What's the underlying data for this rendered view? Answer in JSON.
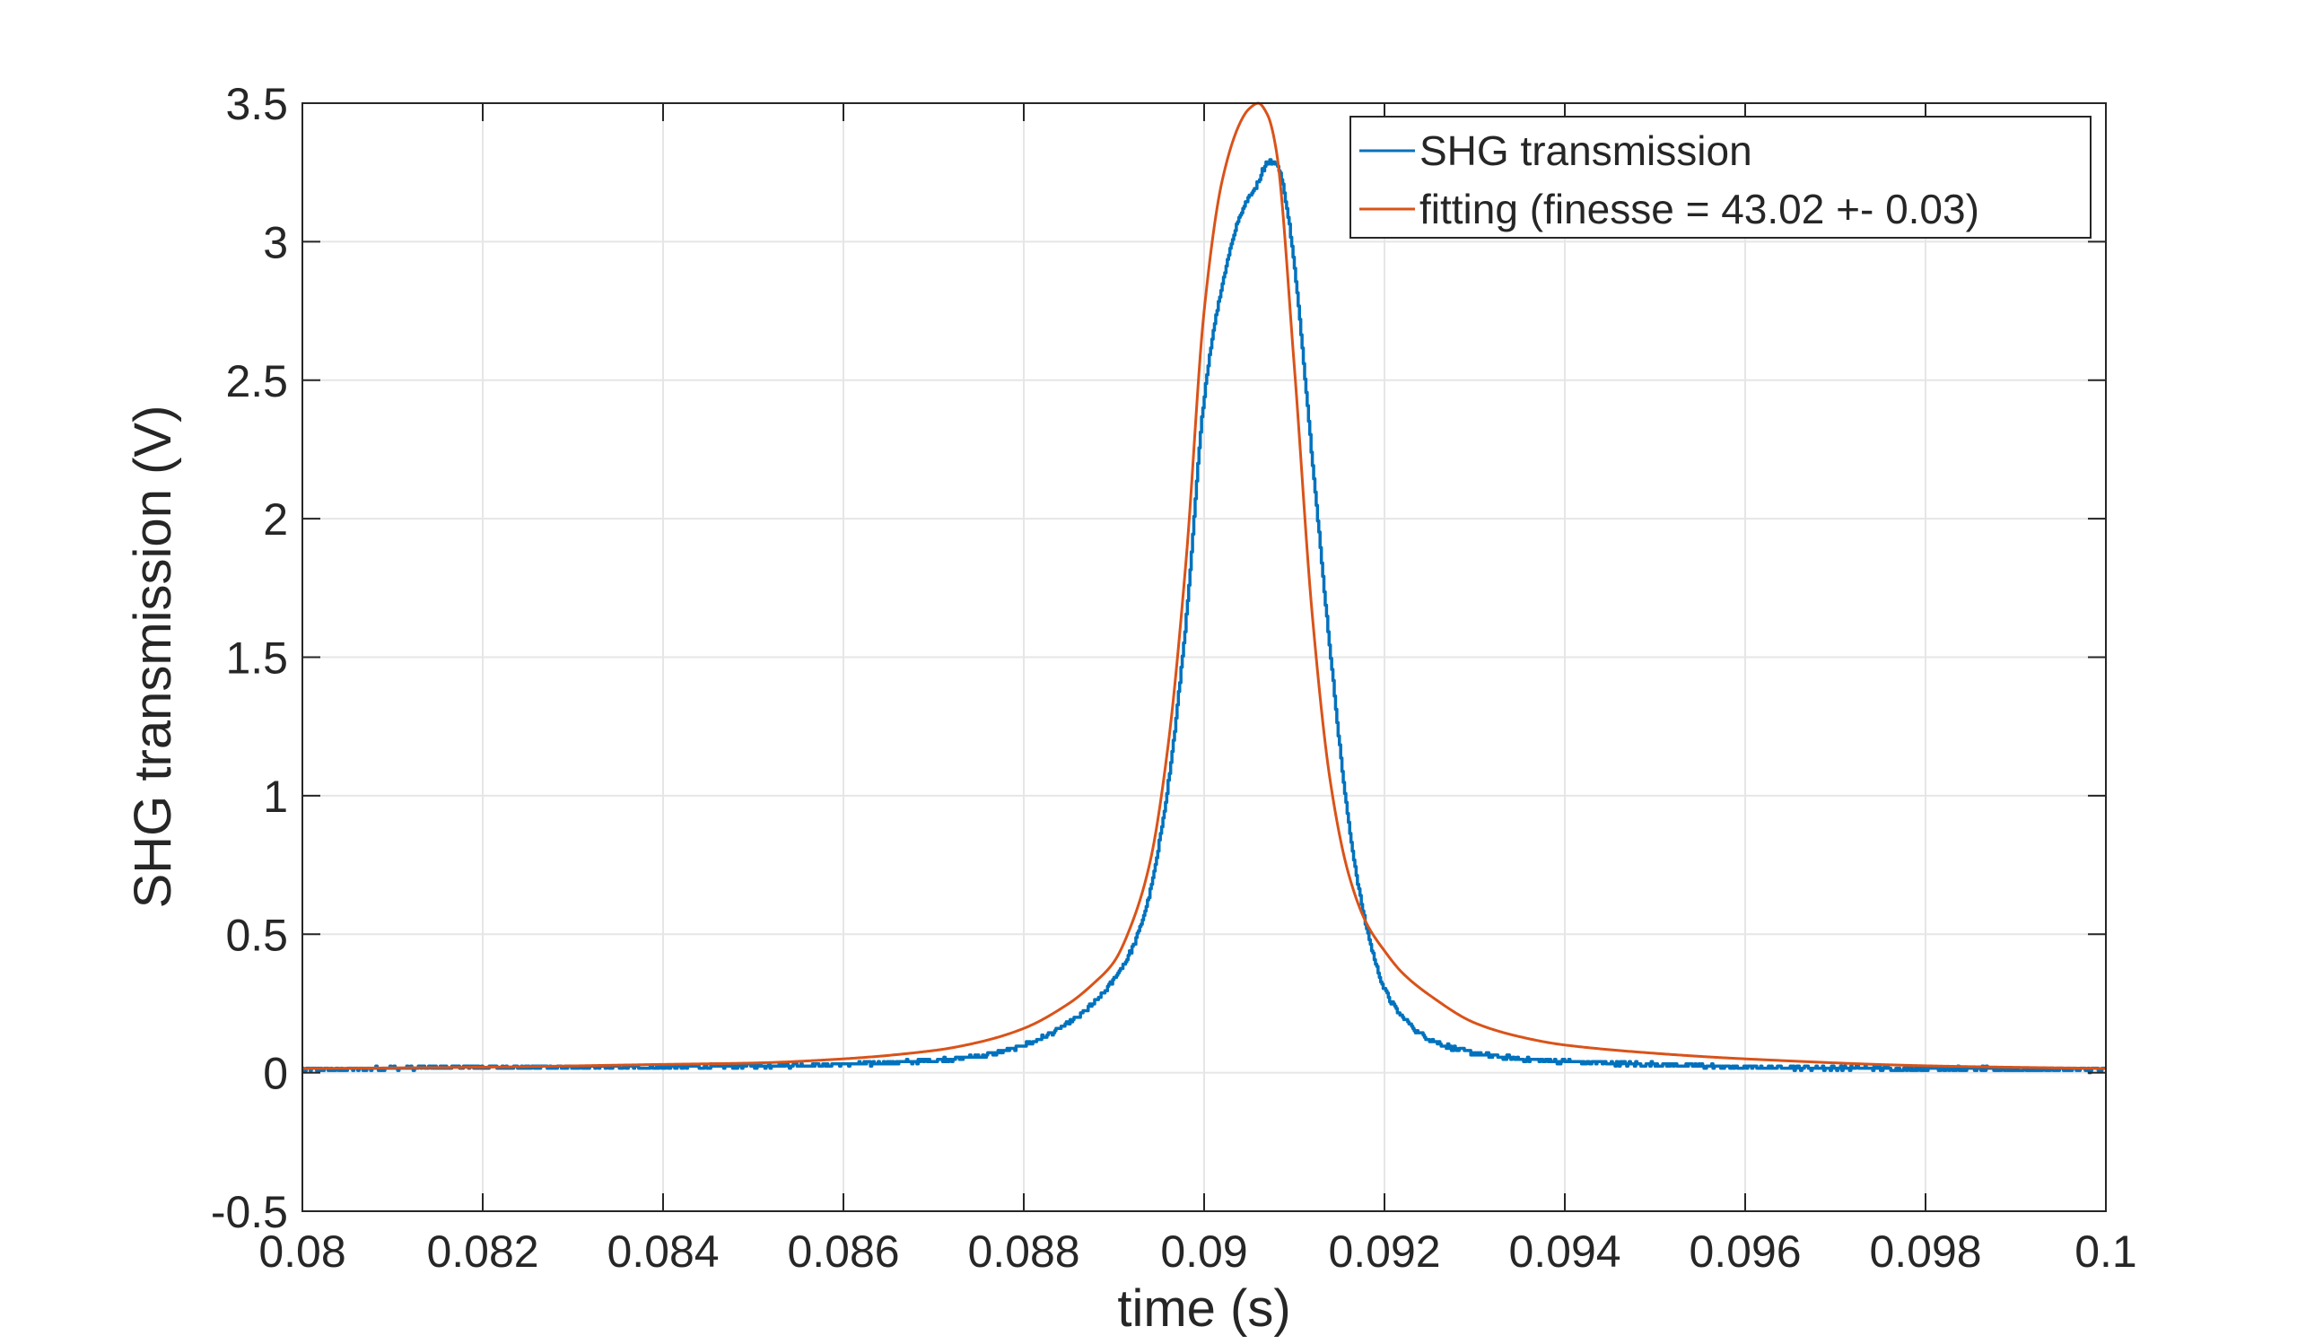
{
  "chart_data": {
    "type": "line",
    "xlabel": "time (s)",
    "ylabel": "SHG transmission (V)",
    "xlim": [
      0.08,
      0.1
    ],
    "ylim": [
      -0.5,
      3.5
    ],
    "xticks": [
      0.08,
      0.082,
      0.084,
      0.086,
      0.088,
      0.09,
      0.092,
      0.094,
      0.096,
      0.098,
      0.1
    ],
    "xtick_labels": [
      "0.08",
      "0.082",
      "0.084",
      "0.086",
      "0.088",
      "0.09",
      "0.092",
      "0.094",
      "0.096",
      "0.098",
      "0.1"
    ],
    "yticks": [
      -0.5,
      0,
      0.5,
      1,
      1.5,
      2,
      2.5,
      3,
      3.5
    ],
    "ytick_labels": [
      "-0.5",
      "0",
      "0.5",
      "1",
      "1.5",
      "2",
      "2.5",
      "3",
      "3.5"
    ],
    "grid": true,
    "legend_position": "top-right",
    "series": [
      {
        "name": "SHG transmission",
        "color": "#0072BD",
        "style": "noisy-step",
        "x": [
          0.08,
          0.082,
          0.084,
          0.085,
          0.086,
          0.087,
          0.0875,
          0.088,
          0.0885,
          0.0888,
          0.089,
          0.0892,
          0.0894,
          0.0896,
          0.0898,
          0.09,
          0.0902,
          0.0904,
          0.0906,
          0.09065,
          0.0907,
          0.0908,
          0.0909,
          0.091,
          0.0912,
          0.0914,
          0.0916,
          0.0918,
          0.092,
          0.0922,
          0.0925,
          0.093,
          0.0935,
          0.094,
          0.095,
          0.096,
          0.098,
          0.1
        ],
        "y": [
          0.01,
          0.02,
          0.02,
          0.025,
          0.03,
          0.045,
          0.06,
          0.1,
          0.18,
          0.26,
          0.34,
          0.45,
          0.66,
          1.05,
          1.65,
          2.45,
          2.85,
          3.1,
          3.22,
          3.26,
          3.29,
          3.28,
          3.15,
          2.9,
          2.2,
          1.5,
          0.9,
          0.52,
          0.3,
          0.2,
          0.12,
          0.07,
          0.05,
          0.04,
          0.03,
          0.02,
          0.015,
          0.01
        ]
      },
      {
        "name": "fitting (finesse = 43.02 +- 0.03)",
        "color": "#D95319",
        "style": "smooth",
        "x": [
          0.08,
          0.082,
          0.084,
          0.085,
          0.086,
          0.087,
          0.0875,
          0.088,
          0.0885,
          0.0888,
          0.089,
          0.0892,
          0.0894,
          0.0896,
          0.0898,
          0.09,
          0.0902,
          0.0904,
          0.0905,
          0.0906,
          0.0907,
          0.0908,
          0.091,
          0.0912,
          0.0914,
          0.0916,
          0.0918,
          0.092,
          0.0922,
          0.0925,
          0.093,
          0.0935,
          0.094,
          0.095,
          0.096,
          0.098,
          0.1
        ],
        "y": [
          0.015,
          0.02,
          0.03,
          0.035,
          0.05,
          0.08,
          0.11,
          0.16,
          0.25,
          0.33,
          0.4,
          0.54,
          0.76,
          1.18,
          1.85,
          2.75,
          3.22,
          3.43,
          3.48,
          3.5,
          3.46,
          3.33,
          2.55,
          1.65,
          1.05,
          0.72,
          0.54,
          0.44,
          0.36,
          0.28,
          0.18,
          0.13,
          0.1,
          0.07,
          0.05,
          0.025,
          0.015
        ]
      }
    ]
  }
}
